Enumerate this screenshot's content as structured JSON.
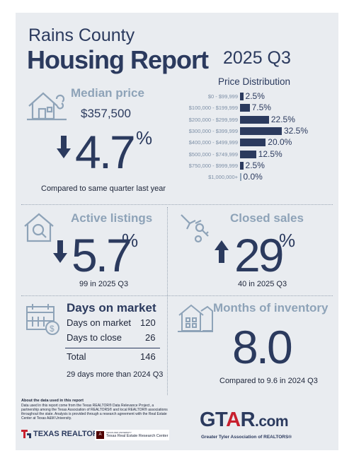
{
  "header": {
    "title_line1": "Rains County",
    "title_line2": "Housing Report",
    "quarter": "2025 Q3"
  },
  "median_price": {
    "heading": "Median price",
    "value": "$357,500",
    "change": "4.7",
    "change_unit": "%",
    "direction": "down",
    "note": "Compared to same quarter last year"
  },
  "price_distribution": {
    "title": "Price Distribution",
    "rows": [
      {
        "label": "$0 - $99,999",
        "value": "2.5%",
        "pct": 2.5
      },
      {
        "label": "$100,000 - $199,999",
        "value": "7.5%",
        "pct": 7.5
      },
      {
        "label": "$200,000 - $299,999",
        "value": "22.5%",
        "pct": 22.5
      },
      {
        "label": "$300,000 - $399,999",
        "value": "32.5%",
        "pct": 32.5
      },
      {
        "label": "$400,000 - $499,999",
        "value": "20.0%",
        "pct": 20.0
      },
      {
        "label": "$500,000 - $749,999",
        "value": "12.5%",
        "pct": 12.5
      },
      {
        "label": "$750,000 - $999,999",
        "value": "2.5%",
        "pct": 2.5
      },
      {
        "label": "$1,000,000+",
        "value": "0.0%",
        "pct": 0.0
      }
    ]
  },
  "active_listings": {
    "heading": "Active listings",
    "change": "5.7",
    "change_unit": "%",
    "direction": "down",
    "note": "99 in 2025 Q3"
  },
  "closed_sales": {
    "heading": "Closed sales",
    "change": "29",
    "change_unit": "%",
    "direction": "up",
    "note": "40 in 2025 Q3"
  },
  "days_on_market": {
    "heading": "Days on market",
    "rows": [
      {
        "label": "Days on market",
        "value": "120"
      },
      {
        "label": "Days to close",
        "value": "26"
      }
    ],
    "total_label": "Total",
    "total_value": "146",
    "note": "29 days more than 2024 Q3"
  },
  "months_inventory": {
    "heading": "Months of inventory",
    "value": "8.0",
    "note": "Compared to 9.6 in 2024 Q3"
  },
  "footer": {
    "about_title": "About the data used in this report",
    "about_text": "Data used in this report come from the Texas REALTOR® Data Relevance Project, a partnership among the Texas Association of REALTORS® and local REALTOR® associations throughout the state. Analysis is provided through a research agreement with the Real Estate Center at Texas A&M University.",
    "texas_realtors": "TEXAS REALTORS",
    "tamu_small": "TEXAS A&M UNIVERSITY",
    "tamu_center": "Texas Real Estate Research Center",
    "gtar_logo": "GTAR.com",
    "gtar_tagline": "Greater Tyler Association of REALTORS®"
  },
  "colors": {
    "navy": "#2b3a5e",
    "steel": "#8ea3b8",
    "background": "#e9ecf0",
    "gtar_red": "#c8202e"
  }
}
